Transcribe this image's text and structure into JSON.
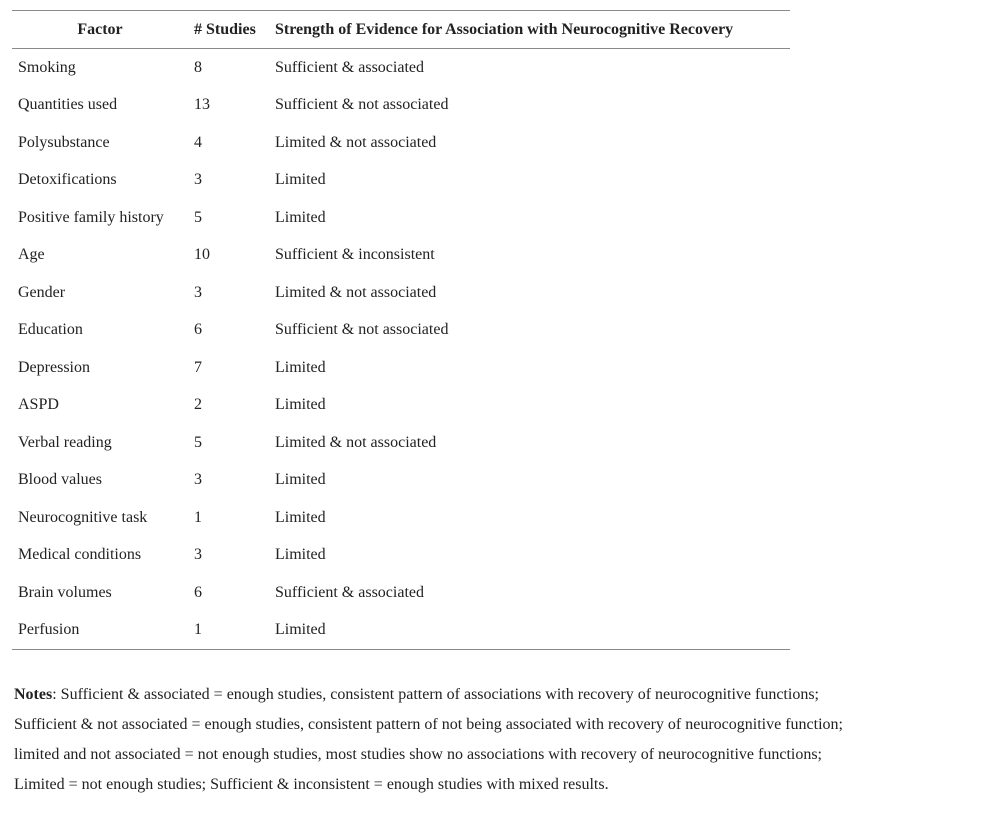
{
  "table": {
    "headers": [
      "Factor",
      "# Studies",
      "Strength of Evidence for Association with Neurocognitive Recovery"
    ],
    "rows": [
      [
        "Smoking",
        "8",
        "Sufficient & associated"
      ],
      [
        "Quantities used",
        "13",
        "Sufficient & not associated"
      ],
      [
        "Polysubstance",
        "4",
        "Limited & not associated"
      ],
      [
        "Detoxifications",
        "3",
        "Limited"
      ],
      [
        "Positive family history",
        "5",
        "Limited"
      ],
      [
        "Age",
        "10",
        "Sufficient & inconsistent"
      ],
      [
        "Gender",
        "3",
        "Limited & not associated"
      ],
      [
        "Education",
        "6",
        "Sufficient & not associated"
      ],
      [
        "Depression",
        "7",
        "Limited"
      ],
      [
        "ASPD",
        "2",
        "Limited"
      ],
      [
        "Verbal reading",
        "5",
        "Limited & not associated"
      ],
      [
        "Blood values",
        "3",
        "Limited"
      ],
      [
        "Neurocognitive task",
        "1",
        "Limited"
      ],
      [
        "Medical conditions",
        "3",
        "Limited"
      ],
      [
        "Brain volumes",
        "6",
        "Sufficient & associated"
      ],
      [
        "Perfusion",
        "1",
        "Limited"
      ]
    ]
  },
  "notes": {
    "label": "Notes",
    "lines": [
      ": Sufficient & associated = enough studies, consistent pattern of associations with recovery of neurocognitive functions;",
      "Sufficient & not associated = enough studies, consistent pattern of not being associated with recovery of neurocognitive function;",
      "limited and not associated = not enough studies, most studies show no associations with recovery of neurocognitive functions;",
      "Limited = not enough studies; Sufficient & inconsistent = enough studies with mixed results."
    ]
  }
}
